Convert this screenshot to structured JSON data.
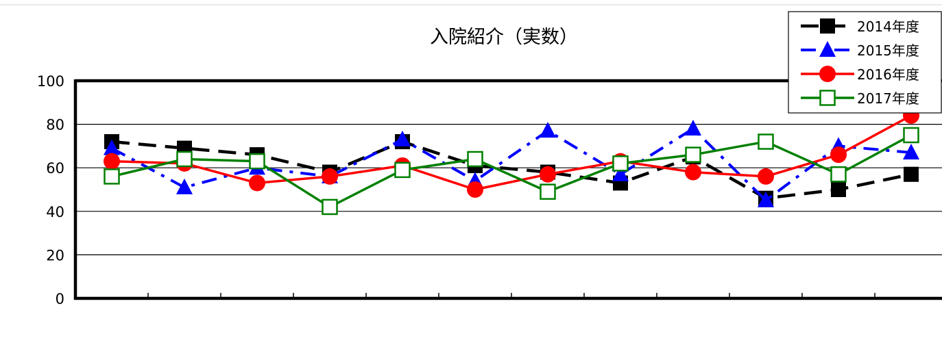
{
  "chart_data": {
    "type": "line",
    "title": "入院紹介（実数）",
    "xlabel": "",
    "ylabel": "",
    "ylim": [
      0,
      100
    ],
    "yticks": [
      0,
      20,
      40,
      60,
      80,
      100
    ],
    "ytick_labels": [
      "0",
      "20",
      "40",
      "60",
      "80",
      "100"
    ],
    "grid": true,
    "legend_position": "top-right",
    "series": [
      {
        "name": "2014年度",
        "color": "#000000",
        "line_style": "dashed",
        "marker": "filled-square",
        "values": [
          72,
          69,
          66,
          58,
          72,
          61,
          58,
          53,
          65,
          46,
          50,
          57
        ]
      },
      {
        "name": "2015年度",
        "color": "#0000ff",
        "line_style": "dash-dot",
        "marker": "filled-triangle",
        "values": [
          69,
          51,
          60,
          56,
          73,
          54,
          77,
          57,
          78,
          45,
          70,
          67
        ]
      },
      {
        "name": "2016年度",
        "color": "#ff0000",
        "line_style": "solid",
        "marker": "filled-circle",
        "values": [
          63,
          62,
          53,
          56,
          61,
          50,
          57,
          63,
          58,
          56,
          66,
          84
        ]
      },
      {
        "name": "2017年度",
        "color": "#008000",
        "line_style": "solid",
        "marker": "open-square",
        "values": [
          56,
          64,
          63,
          42,
          59,
          64,
          49,
          62,
          66,
          72,
          57,
          75
        ]
      }
    ]
  }
}
